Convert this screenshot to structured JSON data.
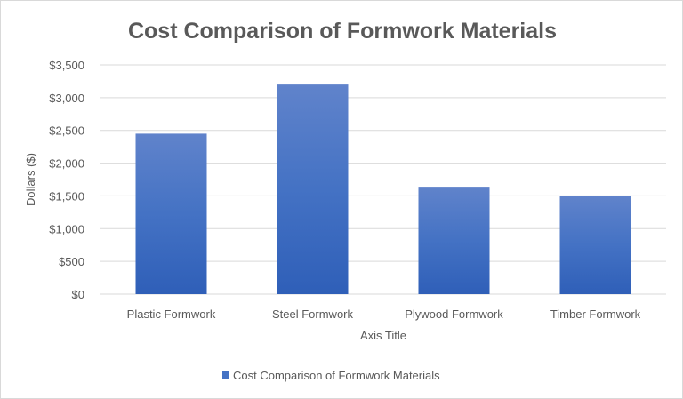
{
  "chart_data": {
    "type": "bar",
    "title": "Cost Comparison of Formwork Materials",
    "xlabel": "Axis Title",
    "ylabel": "Dollars ($)",
    "categories": [
      "Plastic Formwork",
      "Steel Formwork",
      "Plywood Formwork",
      "Timber Formwork"
    ],
    "series": [
      {
        "name": "Cost Comparison of Formwork Materials",
        "values": [
          2450,
          3200,
          1640,
          1500
        ],
        "color": "#4472c4"
      }
    ],
    "ylim": [
      0,
      3500
    ],
    "yticks": [
      0,
      500,
      1000,
      1500,
      2000,
      2500,
      3000,
      3500
    ],
    "ytick_labels": [
      "$0",
      "$500",
      "$1,000",
      "$1,500",
      "$2,000",
      "$2,500",
      "$3,000",
      "$3,500"
    ],
    "grid": true,
    "legend": "bottom"
  }
}
